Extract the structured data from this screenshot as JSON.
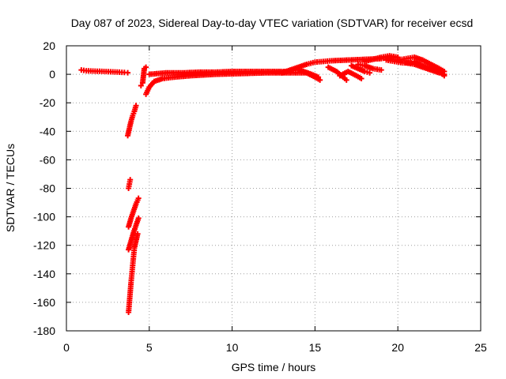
{
  "chart_data": {
    "type": "scatter",
    "title": "Day 087 of 2023, Sidereal Day-to-day VTEC variation (SDTVAR) for receiver ecsd",
    "xlabel": "GPS time / hours",
    "ylabel": "SDTVAR / TECUs",
    "xlim": [
      0,
      25
    ],
    "ylim": [
      -180,
      20
    ],
    "xticks": [
      0,
      5,
      10,
      15,
      20,
      25
    ],
    "xtick_labels": [
      "0",
      "5",
      "10",
      "15",
      "20",
      "25"
    ],
    "yticks": [
      20,
      0,
      -20,
      -40,
      -60,
      -80,
      -100,
      -120,
      -140,
      -160,
      -180
    ],
    "ytick_labels": [
      "20",
      "0",
      "-20",
      "-40",
      "-60",
      "-80",
      "-100",
      "-120",
      "-140",
      "-160",
      "-180"
    ],
    "grid": true,
    "marker": "plus",
    "color": "#ff0000",
    "series": [
      {
        "points": [
          [
            0.9,
            3
          ],
          [
            1.2,
            2.5
          ],
          [
            1.6,
            2.3
          ],
          [
            2.0,
            2.1
          ],
          [
            2.4,
            1.9
          ],
          [
            2.8,
            1.7
          ],
          [
            3.2,
            1.5
          ],
          [
            3.5,
            1.3
          ],
          [
            3.7,
            1.1
          ]
        ]
      },
      {
        "points": [
          [
            3.7,
            -43
          ],
          [
            3.8,
            -38
          ],
          [
            3.9,
            -33
          ],
          [
            4.0,
            -29
          ],
          [
            4.1,
            -26
          ],
          [
            4.2,
            -22
          ]
        ]
      },
      {
        "points": [
          [
            3.75,
            -80
          ],
          [
            3.8,
            -77
          ],
          [
            3.85,
            -74
          ]
        ]
      },
      {
        "points": [
          [
            3.75,
            -107
          ],
          [
            3.9,
            -101
          ],
          [
            4.05,
            -96
          ],
          [
            4.2,
            -91
          ],
          [
            4.35,
            -87
          ]
        ]
      },
      {
        "points": [
          [
            3.75,
            -123
          ],
          [
            3.9,
            -117
          ],
          [
            4.05,
            -111
          ],
          [
            4.2,
            -106
          ],
          [
            4.35,
            -101
          ]
        ]
      },
      {
        "points": [
          [
            3.75,
            -167
          ],
          [
            3.8,
            -160
          ],
          [
            3.85,
            -153
          ],
          [
            3.9,
            -146
          ],
          [
            3.95,
            -140
          ],
          [
            4.0,
            -134
          ],
          [
            4.05,
            -128
          ],
          [
            4.1,
            -122
          ],
          [
            4.2,
            -117
          ],
          [
            4.3,
            -112
          ]
        ]
      },
      {
        "points": [
          [
            4.5,
            -8
          ],
          [
            4.6,
            -6
          ],
          [
            4.7,
            4
          ],
          [
            4.8,
            5
          ]
        ]
      },
      {
        "points": [
          [
            4.8,
            -14
          ],
          [
            5.0,
            -9
          ],
          [
            5.3,
            -5
          ],
          [
            5.8,
            -3
          ],
          [
            6.5,
            -2
          ],
          [
            7.5,
            -1
          ],
          [
            9.0,
            0
          ],
          [
            10.5,
            0.5
          ],
          [
            12.0,
            1
          ],
          [
            13.5,
            1
          ],
          [
            14.5,
            1
          ]
        ]
      },
      {
        "points": [
          [
            5.0,
            0
          ],
          [
            6.0,
            1
          ],
          [
            7.0,
            1
          ],
          [
            8.0,
            1.5
          ],
          [
            9.0,
            1.5
          ],
          [
            10.0,
            2
          ],
          [
            11.0,
            2
          ],
          [
            12.0,
            2
          ],
          [
            13.0,
            2
          ],
          [
            13.5,
            2
          ]
        ]
      },
      {
        "points": [
          [
            13.0,
            1
          ],
          [
            13.5,
            3
          ],
          [
            14.0,
            5
          ],
          [
            14.5,
            7
          ],
          [
            15.0,
            8.5
          ],
          [
            15.5,
            9
          ],
          [
            16.0,
            9.5
          ],
          [
            17.0,
            10
          ],
          [
            18.0,
            10.5
          ],
          [
            19.0,
            11
          ],
          [
            19.5,
            12
          ],
          [
            20.0,
            11.5
          ]
        ]
      },
      {
        "points": [
          [
            14.0,
            3
          ],
          [
            14.5,
            1
          ],
          [
            15.0,
            -2
          ],
          [
            15.3,
            -4
          ]
        ]
      },
      {
        "points": [
          [
            14.3,
            2
          ],
          [
            14.8,
            0
          ],
          [
            15.2,
            -2
          ]
        ]
      },
      {
        "points": [
          [
            15.8,
            5
          ],
          [
            16.3,
            2
          ],
          [
            16.7,
            -2
          ],
          [
            16.9,
            -4
          ]
        ]
      },
      {
        "points": [
          [
            17.2,
            6
          ],
          [
            17.6,
            4
          ],
          [
            18.0,
            2
          ],
          [
            18.3,
            1
          ]
        ]
      },
      {
        "points": [
          [
            16.5,
            -1
          ],
          [
            17.0,
            2
          ],
          [
            17.5,
            -1
          ],
          [
            17.8,
            -3
          ]
        ]
      },
      {
        "points": [
          [
            17.6,
            7
          ],
          [
            18.0,
            6
          ],
          [
            18.5,
            4
          ],
          [
            19.0,
            3
          ]
        ]
      },
      {
        "points": [
          [
            18.0,
            9
          ],
          [
            19.0,
            12
          ],
          [
            19.5,
            13
          ],
          [
            20.0,
            12
          ]
        ]
      },
      {
        "points": [
          [
            20.0,
            10
          ],
          [
            20.5,
            11
          ],
          [
            21.0,
            12
          ],
          [
            21.5,
            10
          ],
          [
            22.0,
            7
          ],
          [
            22.5,
            4
          ],
          [
            22.8,
            2
          ]
        ]
      },
      {
        "points": [
          [
            20.5,
            8
          ],
          [
            21.0,
            7
          ],
          [
            21.5,
            5
          ],
          [
            22.0,
            3
          ],
          [
            22.5,
            1
          ],
          [
            22.8,
            0
          ]
        ]
      },
      {
        "points": [
          [
            21.0,
            9
          ],
          [
            21.5,
            6
          ],
          [
            22.0,
            4
          ],
          [
            22.5,
            2
          ],
          [
            22.8,
            -1
          ]
        ]
      },
      {
        "points": [
          [
            19.3,
            10
          ],
          [
            19.8,
            9
          ],
          [
            20.3,
            8
          ],
          [
            20.8,
            8
          ]
        ]
      }
    ]
  }
}
